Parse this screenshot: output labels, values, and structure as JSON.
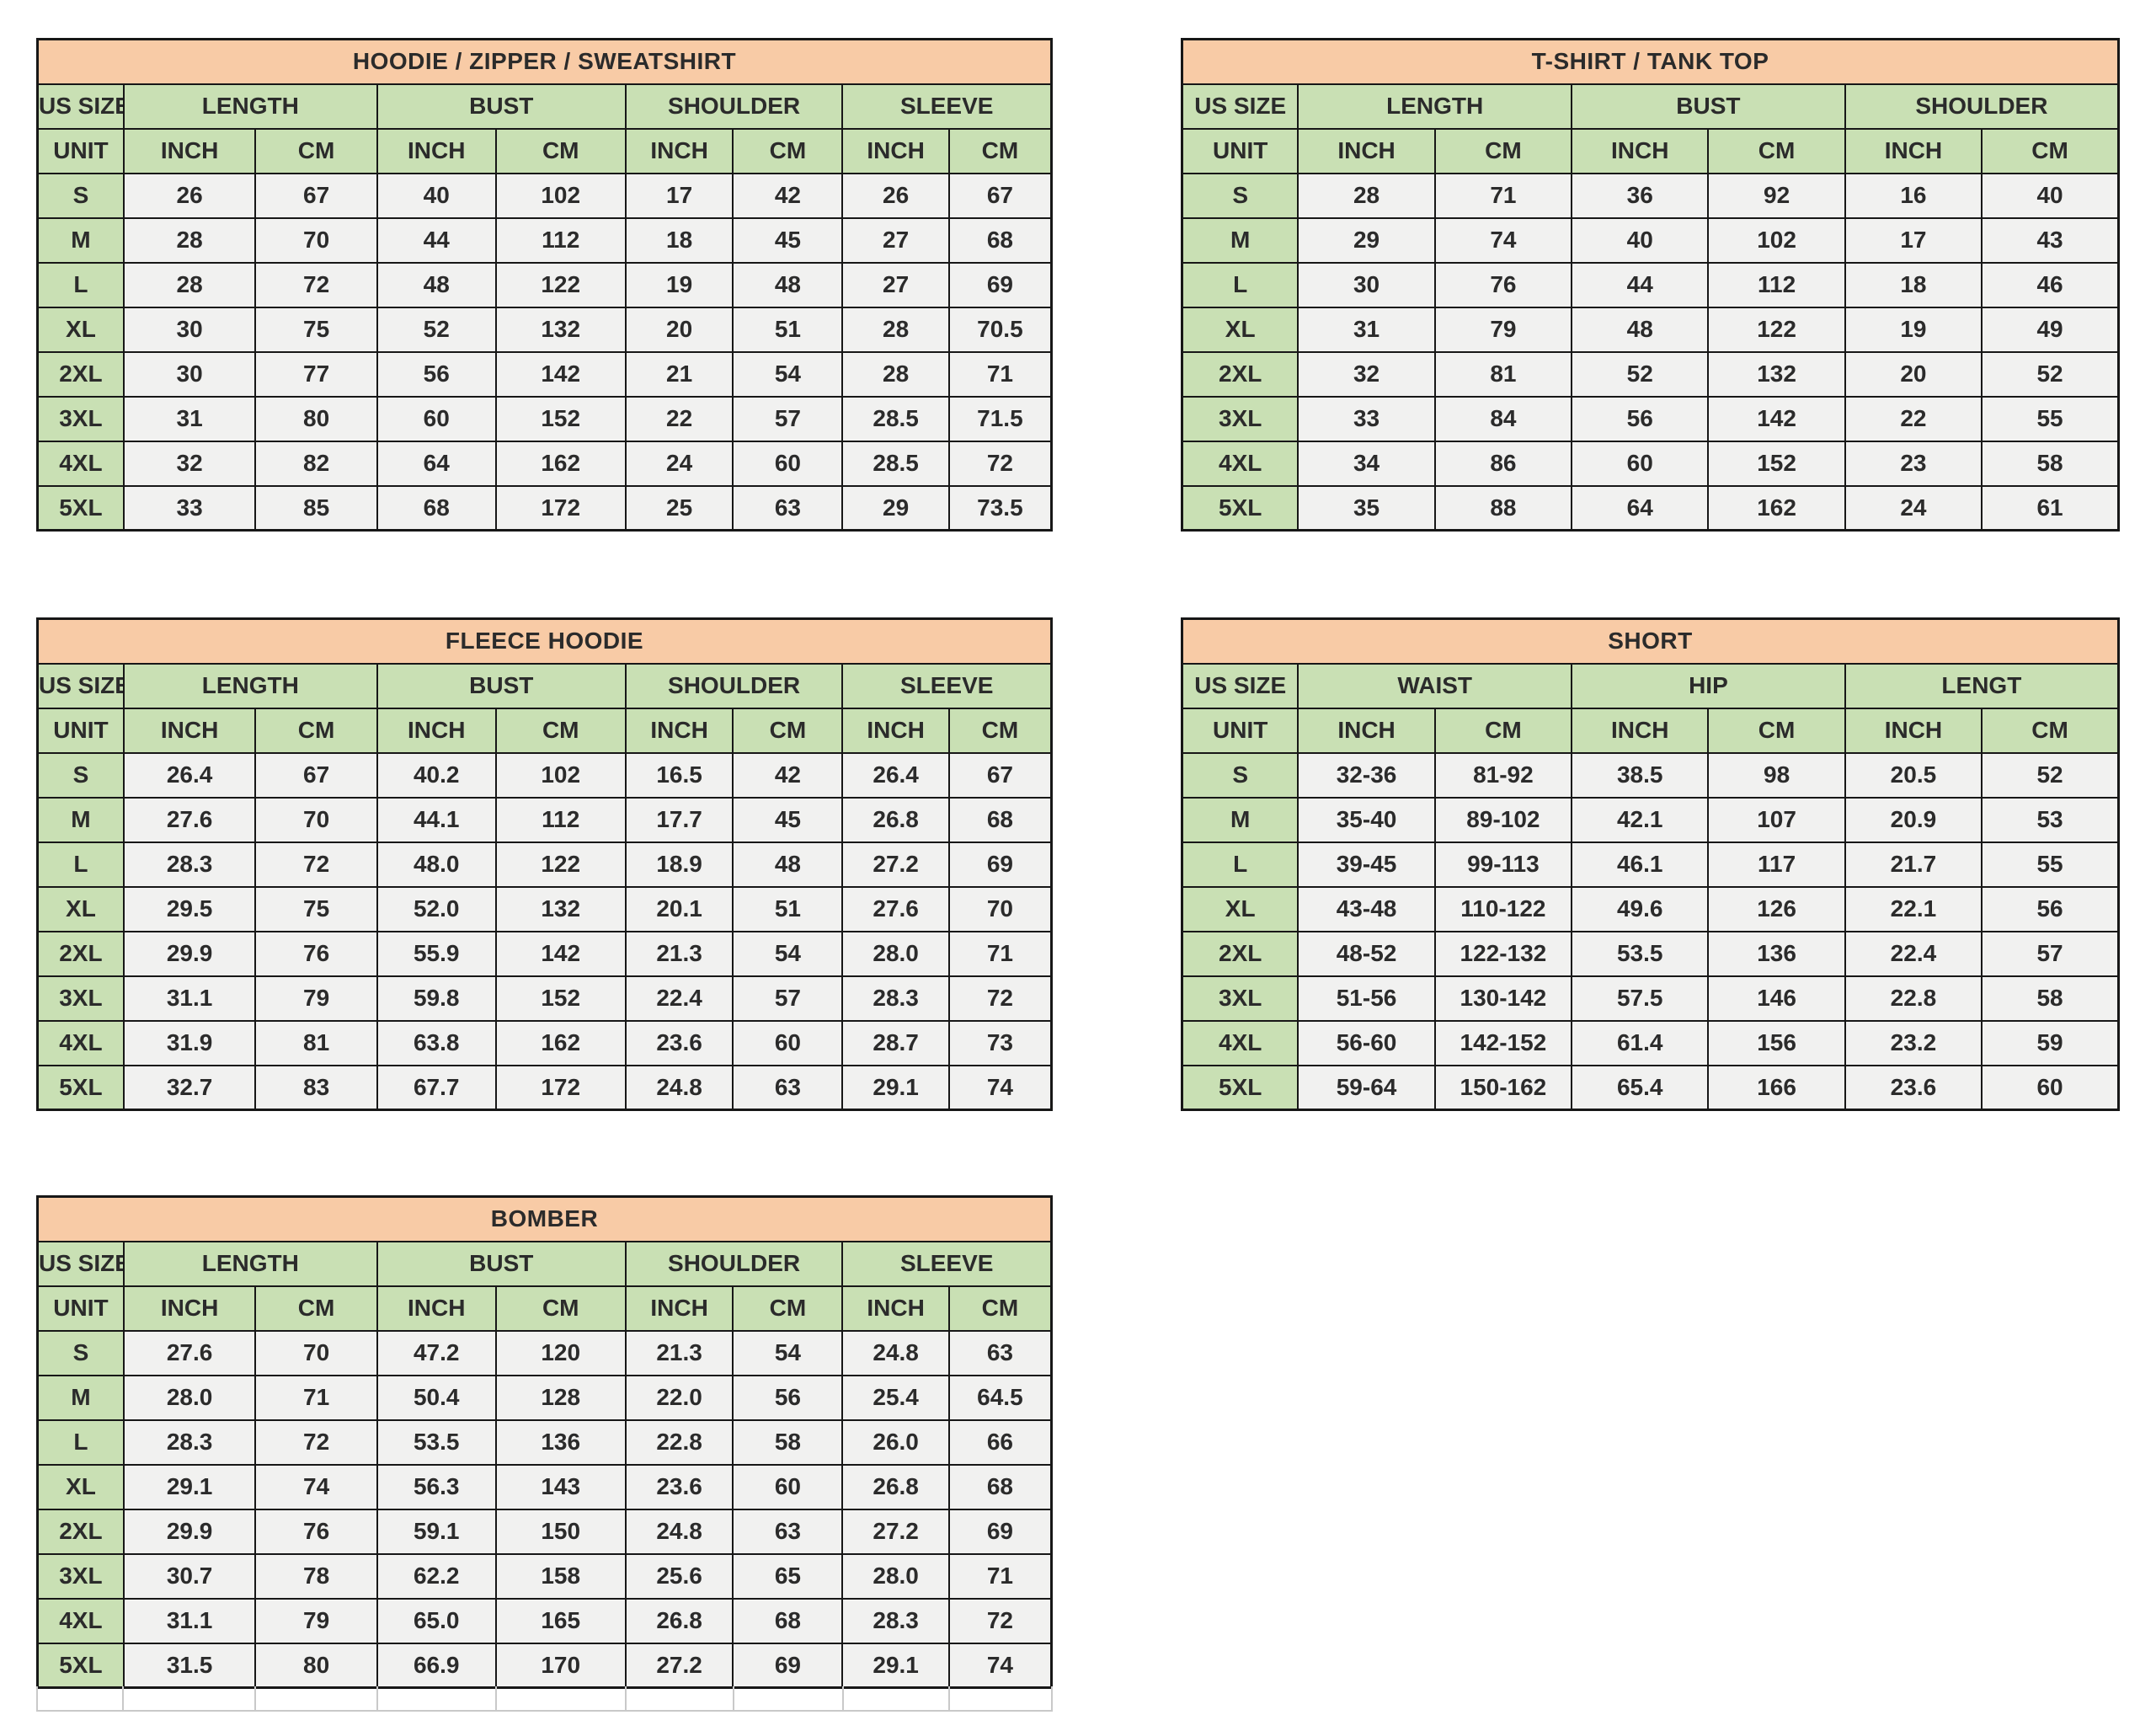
{
  "colors": {
    "title_bg": "#f8cba6",
    "header_bg": "#c9e0b4",
    "cell_bg": "#f1f1f0",
    "border": "#171717",
    "text": "#2b2b2b"
  },
  "tables": [
    {
      "id": "hoodie",
      "title": "HOODIE / ZIPPER / SWEATSHIRT",
      "size_label": "US SIZE",
      "unit_label": "UNIT",
      "groups": [
        "LENGTH",
        "BUST",
        "SHOULDER",
        "SLEEVE"
      ],
      "unit_headers": [
        "INCH",
        "CM",
        "INCH",
        "CM",
        "INCH",
        "CM",
        "INCH",
        "CM"
      ],
      "rows": [
        {
          "size": "S",
          "values": [
            "26",
            "67",
            "40",
            "102",
            "17",
            "42",
            "26",
            "67"
          ]
        },
        {
          "size": "M",
          "values": [
            "28",
            "70",
            "44",
            "112",
            "18",
            "45",
            "27",
            "68"
          ]
        },
        {
          "size": "L",
          "values": [
            "28",
            "72",
            "48",
            "122",
            "19",
            "48",
            "27",
            "69"
          ]
        },
        {
          "size": "XL",
          "values": [
            "30",
            "75",
            "52",
            "132",
            "20",
            "51",
            "28",
            "70.5"
          ]
        },
        {
          "size": "2XL",
          "values": [
            "30",
            "77",
            "56",
            "142",
            "21",
            "54",
            "28",
            "71"
          ]
        },
        {
          "size": "3XL",
          "values": [
            "31",
            "80",
            "60",
            "152",
            "22",
            "57",
            "28.5",
            "71.5"
          ]
        },
        {
          "size": "4XL",
          "values": [
            "32",
            "82",
            "64",
            "162",
            "24",
            "60",
            "28.5",
            "72"
          ]
        },
        {
          "size": "5XL",
          "values": [
            "33",
            "85",
            "68",
            "172",
            "25",
            "63",
            "29",
            "73.5"
          ]
        }
      ]
    },
    {
      "id": "tshirt",
      "title": "T-SHIRT / TANK TOP",
      "size_label": "US SIZE",
      "unit_label": "UNIT",
      "groups": [
        "LENGTH",
        "BUST",
        "SHOULDER"
      ],
      "unit_headers": [
        "INCH",
        "CM",
        "INCH",
        "CM",
        "INCH",
        "CM"
      ],
      "rows": [
        {
          "size": "S",
          "values": [
            "28",
            "71",
            "36",
            "92",
            "16",
            "40"
          ]
        },
        {
          "size": "M",
          "values": [
            "29",
            "74",
            "40",
            "102",
            "17",
            "43"
          ]
        },
        {
          "size": "L",
          "values": [
            "30",
            "76",
            "44",
            "112",
            "18",
            "46"
          ]
        },
        {
          "size": "XL",
          "values": [
            "31",
            "79",
            "48",
            "122",
            "19",
            "49"
          ]
        },
        {
          "size": "2XL",
          "values": [
            "32",
            "81",
            "52",
            "132",
            "20",
            "52"
          ]
        },
        {
          "size": "3XL",
          "values": [
            "33",
            "84",
            "56",
            "142",
            "22",
            "55"
          ]
        },
        {
          "size": "4XL",
          "values": [
            "34",
            "86",
            "60",
            "152",
            "23",
            "58"
          ]
        },
        {
          "size": "5XL",
          "values": [
            "35",
            "88",
            "64",
            "162",
            "24",
            "61"
          ]
        }
      ]
    },
    {
      "id": "fleece",
      "title": "FLEECE HOODIE",
      "size_label": "US SIZE",
      "unit_label": "UNIT",
      "groups": [
        "LENGTH",
        "BUST",
        "SHOULDER",
        "SLEEVE"
      ],
      "unit_headers": [
        "INCH",
        "CM",
        "INCH",
        "CM",
        "INCH",
        "CM",
        "INCH",
        "CM"
      ],
      "rows": [
        {
          "size": "S",
          "values": [
            "26.4",
            "67",
            "40.2",
            "102",
            "16.5",
            "42",
            "26.4",
            "67"
          ]
        },
        {
          "size": "M",
          "values": [
            "27.6",
            "70",
            "44.1",
            "112",
            "17.7",
            "45",
            "26.8",
            "68"
          ]
        },
        {
          "size": "L",
          "values": [
            "28.3",
            "72",
            "48.0",
            "122",
            "18.9",
            "48",
            "27.2",
            "69"
          ]
        },
        {
          "size": "XL",
          "values": [
            "29.5",
            "75",
            "52.0",
            "132",
            "20.1",
            "51",
            "27.6",
            "70"
          ]
        },
        {
          "size": "2XL",
          "values": [
            "29.9",
            "76",
            "55.9",
            "142",
            "21.3",
            "54",
            "28.0",
            "71"
          ]
        },
        {
          "size": "3XL",
          "values": [
            "31.1",
            "79",
            "59.8",
            "152",
            "22.4",
            "57",
            "28.3",
            "72"
          ]
        },
        {
          "size": "4XL",
          "values": [
            "31.9",
            "81",
            "63.8",
            "162",
            "23.6",
            "60",
            "28.7",
            "73"
          ]
        },
        {
          "size": "5XL",
          "values": [
            "32.7",
            "83",
            "67.7",
            "172",
            "24.8",
            "63",
            "29.1",
            "74"
          ]
        }
      ]
    },
    {
      "id": "short",
      "title": "SHORT",
      "size_label": "US SIZE",
      "unit_label": "UNIT",
      "groups": [
        "WAIST",
        "HIP",
        "LENGT"
      ],
      "unit_headers": [
        "INCH",
        "CM",
        "INCH",
        "CM",
        "INCH",
        "CM"
      ],
      "rows": [
        {
          "size": "S",
          "values": [
            "32-36",
            "81-92",
            "38.5",
            "98",
            "20.5",
            "52"
          ]
        },
        {
          "size": "M",
          "values": [
            "35-40",
            "89-102",
            "42.1",
            "107",
            "20.9",
            "53"
          ]
        },
        {
          "size": "L",
          "values": [
            "39-45",
            "99-113",
            "46.1",
            "117",
            "21.7",
            "55"
          ]
        },
        {
          "size": "XL",
          "values": [
            "43-48",
            "110-122",
            "49.6",
            "126",
            "22.1",
            "56"
          ]
        },
        {
          "size": "2XL",
          "values": [
            "48-52",
            "122-132",
            "53.5",
            "136",
            "22.4",
            "57"
          ]
        },
        {
          "size": "3XL",
          "values": [
            "51-56",
            "130-142",
            "57.5",
            "146",
            "22.8",
            "58"
          ]
        },
        {
          "size": "4XL",
          "values": [
            "56-60",
            "142-152",
            "61.4",
            "156",
            "23.2",
            "59"
          ]
        },
        {
          "size": "5XL",
          "values": [
            "59-64",
            "150-162",
            "65.4",
            "166",
            "23.6",
            "60"
          ]
        }
      ]
    },
    {
      "id": "bomber",
      "title": "BOMBER",
      "size_label": "US SIZE",
      "unit_label": "UNIT",
      "groups": [
        "LENGTH",
        "BUST",
        "SHOULDER",
        "SLEEVE"
      ],
      "unit_headers": [
        "INCH",
        "CM",
        "INCH",
        "CM",
        "INCH",
        "CM",
        "INCH",
        "CM"
      ],
      "rows": [
        {
          "size": "S",
          "values": [
            "27.6",
            "70",
            "47.2",
            "120",
            "21.3",
            "54",
            "24.8",
            "63"
          ]
        },
        {
          "size": "M",
          "values": [
            "28.0",
            "71",
            "50.4",
            "128",
            "22.0",
            "56",
            "25.4",
            "64.5"
          ]
        },
        {
          "size": "L",
          "values": [
            "28.3",
            "72",
            "53.5",
            "136",
            "22.8",
            "58",
            "26.0",
            "66"
          ]
        },
        {
          "size": "XL",
          "values": [
            "29.1",
            "74",
            "56.3",
            "143",
            "23.6",
            "60",
            "26.8",
            "68"
          ]
        },
        {
          "size": "2XL",
          "values": [
            "29.9",
            "76",
            "59.1",
            "150",
            "24.8",
            "63",
            "27.2",
            "69"
          ]
        },
        {
          "size": "3XL",
          "values": [
            "30.7",
            "78",
            "62.2",
            "158",
            "25.6",
            "65",
            "28.0",
            "71"
          ]
        },
        {
          "size": "4XL",
          "values": [
            "31.1",
            "79",
            "65.0",
            "165",
            "26.8",
            "68",
            "28.3",
            "72"
          ]
        },
        {
          "size": "5XL",
          "values": [
            "31.5",
            "80",
            "66.9",
            "170",
            "27.2",
            "69",
            "29.1",
            "74"
          ]
        }
      ]
    }
  ]
}
